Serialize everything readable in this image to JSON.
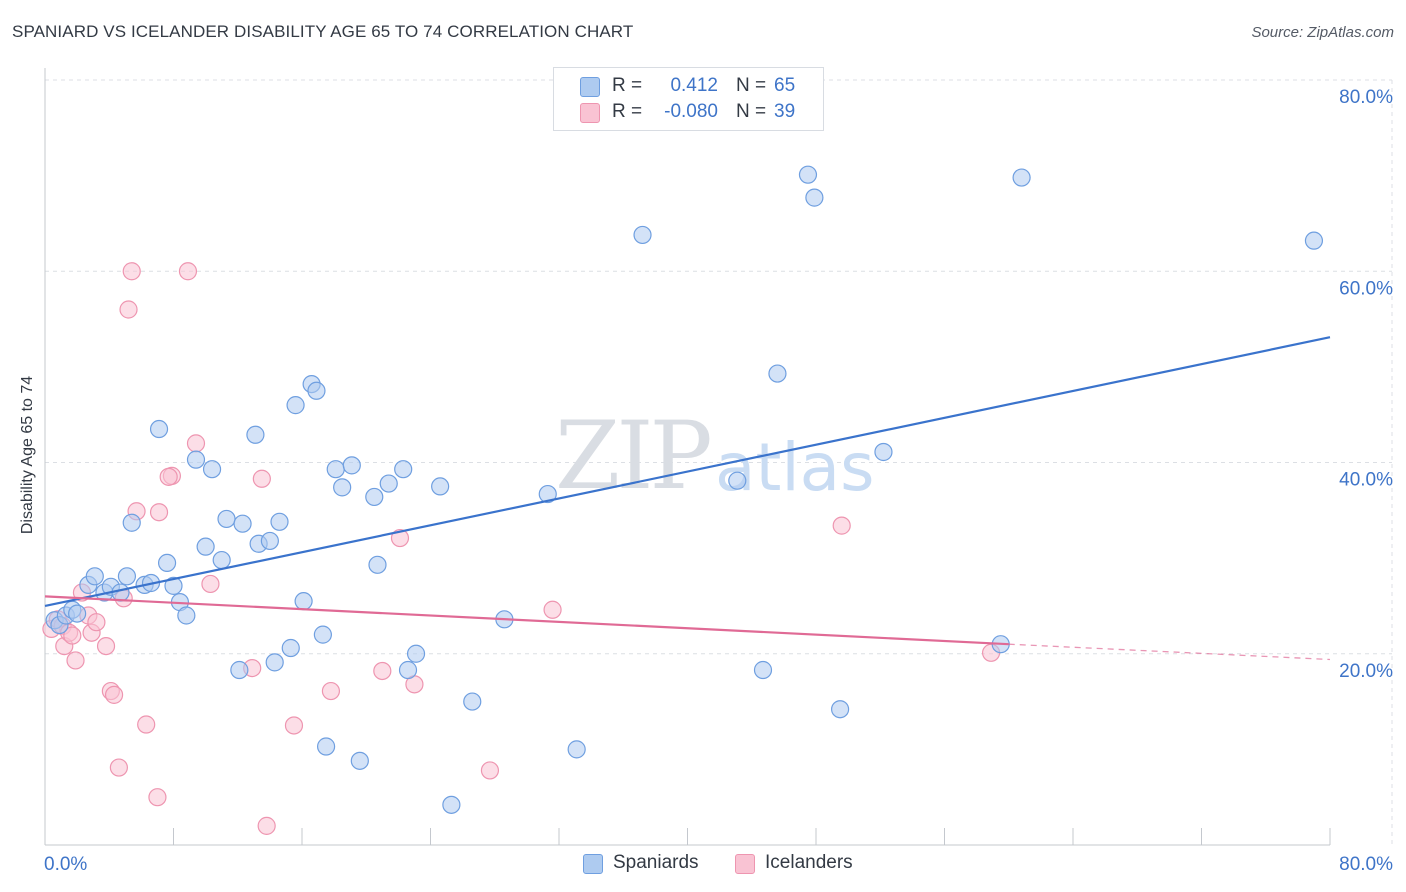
{
  "header": {
    "title": "SPANIARD VS ICELANDER DISABILITY AGE 65 TO 74 CORRELATION CHART",
    "source": "Source: ZipAtlas.com"
  },
  "watermark": {
    "zip": "ZIP",
    "atlas": "atlas"
  },
  "legend": {
    "rows": [
      {
        "r_label": "R =",
        "r_value": "0.412",
        "n_label": "N =",
        "n_value": "65"
      },
      {
        "r_label": "R =",
        "r_value": "-0.080",
        "n_label": "N =",
        "n_value": "39"
      }
    ]
  },
  "bottom_legend": {
    "spaniards": "Spaniards",
    "icelanders": "Icelanders"
  },
  "colors": {
    "spaniards_fill": "#aecbf0",
    "spaniards_stroke": "#6f9fe0",
    "spaniards_line": "#3a73cc",
    "icelanders_fill": "#f9c3d3",
    "icelanders_stroke": "#ee95b0",
    "icelanders_line": "#e06a95",
    "axis_label": "#3e74c8",
    "grid": "#dcdfe4"
  },
  "chart_data": {
    "type": "scatter",
    "title": "SPANIARD VS ICELANDER DISABILITY AGE 65 TO 74 CORRELATION CHART",
    "xlabel": "",
    "ylabel": "Disability Age 65 to 74",
    "xlim": [
      0,
      80
    ],
    "ylim": [
      0,
      82
    ],
    "x_tick_labels": [
      "0.0%",
      "80.0%"
    ],
    "y_ticks": [
      20,
      40,
      60,
      80
    ],
    "y_tick_labels": [
      "20.0%",
      "40.0%",
      "60.0%",
      "80.0%"
    ],
    "grid": true,
    "legend_position": "top-center",
    "series": [
      {
        "name": "Spaniards",
        "R": 0.412,
        "N": 65,
        "trend": {
          "x": [
            0,
            80
          ],
          "y": [
            25.0,
            53.1
          ]
        },
        "points": [
          [
            0.6,
            23.5
          ],
          [
            0.9,
            23.0
          ],
          [
            1.3,
            24.0
          ],
          [
            1.7,
            24.6
          ],
          [
            2.0,
            24.2
          ],
          [
            2.7,
            27.2
          ],
          [
            3.1,
            28.1
          ],
          [
            3.7,
            26.4
          ],
          [
            4.1,
            27.0
          ],
          [
            4.7,
            26.4
          ],
          [
            5.1,
            28.1
          ],
          [
            5.4,
            33.7
          ],
          [
            6.2,
            27.2
          ],
          [
            6.6,
            27.4
          ],
          [
            7.1,
            43.5
          ],
          [
            7.6,
            29.5
          ],
          [
            8.0,
            27.1
          ],
          [
            8.4,
            25.4
          ],
          [
            8.8,
            24.0
          ],
          [
            9.4,
            40.3
          ],
          [
            10.0,
            31.2
          ],
          [
            10.4,
            39.3
          ],
          [
            11.0,
            29.8
          ],
          [
            11.3,
            34.1
          ],
          [
            12.1,
            18.3
          ],
          [
            12.3,
            33.6
          ],
          [
            13.1,
            42.9
          ],
          [
            13.3,
            31.5
          ],
          [
            14.0,
            31.8
          ],
          [
            14.3,
            19.1
          ],
          [
            14.6,
            33.8
          ],
          [
            15.3,
            20.6
          ],
          [
            15.6,
            46.0
          ],
          [
            16.1,
            25.5
          ],
          [
            16.6,
            48.2
          ],
          [
            16.9,
            47.5
          ],
          [
            17.3,
            22.0
          ],
          [
            17.5,
            10.3
          ],
          [
            18.1,
            39.3
          ],
          [
            18.5,
            37.4
          ],
          [
            19.1,
            39.7
          ],
          [
            19.6,
            8.8
          ],
          [
            20.5,
            36.4
          ],
          [
            20.7,
            29.3
          ],
          [
            21.4,
            37.8
          ],
          [
            22.3,
            39.3
          ],
          [
            22.6,
            18.3
          ],
          [
            23.1,
            20.0
          ],
          [
            24.6,
            37.5
          ],
          [
            25.3,
            4.2
          ],
          [
            26.6,
            15.0
          ],
          [
            28.6,
            23.6
          ],
          [
            31.3,
            36.7
          ],
          [
            33.1,
            10.0
          ],
          [
            37.2,
            63.8
          ],
          [
            43.1,
            38.1
          ],
          [
            44.7,
            18.3
          ],
          [
            45.6,
            49.3
          ],
          [
            47.5,
            70.1
          ],
          [
            47.9,
            67.7
          ],
          [
            49.5,
            14.2
          ],
          [
            52.2,
            41.1
          ],
          [
            59.5,
            21.0
          ],
          [
            60.8,
            69.8
          ],
          [
            79.0,
            63.2
          ]
        ]
      },
      {
        "name": "Icelanders",
        "R": -0.08,
        "N": 39,
        "trend": {
          "x": [
            0,
            60
          ],
          "y": [
            26.0,
            21.0
          ]
        },
        "trend_extension": {
          "x": [
            60,
            80
          ],
          "y": [
            21.0,
            19.4
          ]
        },
        "points": [
          [
            0.4,
            22.6
          ],
          [
            0.8,
            23.6
          ],
          [
            1.1,
            22.9
          ],
          [
            1.2,
            20.8
          ],
          [
            1.5,
            22.2
          ],
          [
            1.7,
            21.9
          ],
          [
            1.9,
            19.3
          ],
          [
            2.3,
            26.4
          ],
          [
            2.7,
            24.0
          ],
          [
            2.9,
            22.2
          ],
          [
            3.2,
            23.3
          ],
          [
            3.8,
            20.8
          ],
          [
            4.1,
            16.1
          ],
          [
            4.3,
            15.7
          ],
          [
            4.6,
            8.1
          ],
          [
            4.9,
            25.8
          ],
          [
            5.2,
            56.0
          ],
          [
            5.4,
            60.0
          ],
          [
            5.7,
            34.9
          ],
          [
            6.3,
            12.6
          ],
          [
            7.0,
            5.0
          ],
          [
            7.1,
            34.8
          ],
          [
            7.9,
            38.6
          ],
          [
            7.7,
            38.5
          ],
          [
            8.9,
            60.0
          ],
          [
            9.4,
            42.0
          ],
          [
            10.3,
            27.3
          ],
          [
            12.9,
            18.5
          ],
          [
            13.5,
            38.3
          ],
          [
            13.8,
            2.0
          ],
          [
            15.5,
            12.5
          ],
          [
            17.8,
            16.1
          ],
          [
            21.0,
            18.2
          ],
          [
            22.1,
            32.1
          ],
          [
            23.0,
            16.8
          ],
          [
            27.7,
            7.8
          ],
          [
            31.6,
            24.6
          ],
          [
            49.6,
            33.4
          ],
          [
            58.9,
            20.1
          ]
        ]
      }
    ]
  }
}
